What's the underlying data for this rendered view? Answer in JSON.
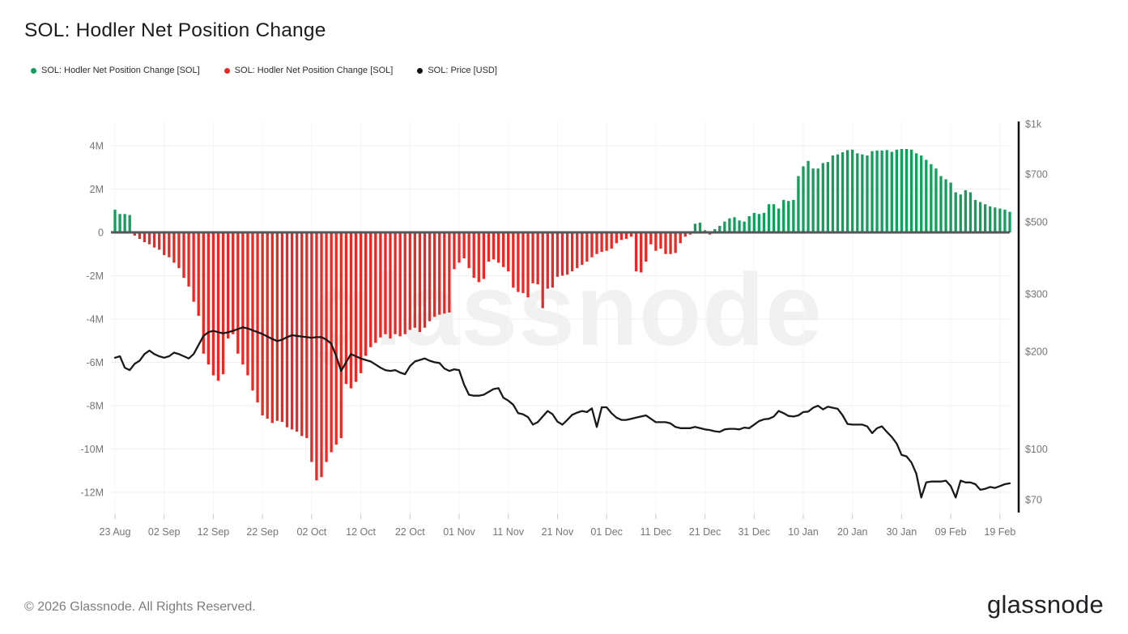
{
  "header": {
    "title": "SOL: Hodler Net Position Change"
  },
  "legend": [
    {
      "label": "SOL: Hodler Net Position Change [SOL]",
      "color": "#10a05c"
    },
    {
      "label": "SOL: Hodler Net Position Change [SOL]",
      "color": "#ed2824"
    },
    {
      "label": "SOL: Price [USD]",
      "color": "#111111"
    }
  ],
  "watermark": "glassnode",
  "footer": {
    "copyright": "© 2026 Glassnode. All Rights Reserved.",
    "logo": "glassnode"
  },
  "chart_data": {
    "type": "bar+line",
    "title": "SOL: Hodler Net Position Change",
    "x_start": "23 Aug",
    "x_end": "21 Feb",
    "x_interval": "daily",
    "x_tick_labels": [
      "23 Aug",
      "02 Sep",
      "12 Sep",
      "22 Sep",
      "02 Oct",
      "12 Oct",
      "22 Oct",
      "01 Nov",
      "11 Nov",
      "21 Nov",
      "01 Dec",
      "11 Dec",
      "21 Dec",
      "31 Dec",
      "10 Jan",
      "20 Jan",
      "30 Jan",
      "09 Feb",
      "19 Feb"
    ],
    "x_tick_day_step": 10,
    "grid": true,
    "legend_position": "top-left",
    "left_axis": {
      "title": "Hodler Net Position Change [SOL]",
      "ticks": [
        "4M",
        "2M",
        "0",
        "-2M",
        "-4M",
        "-6M",
        "-8M",
        "-10M",
        "-12M"
      ],
      "tick_values": [
        4,
        2,
        0,
        -2,
        -4,
        -6,
        -8,
        -10,
        -12
      ],
      "ylim": [
        -13.0,
        5.1
      ],
      "unit": "million SOL"
    },
    "right_axis": {
      "title": "Price [USD]",
      "scale": "log",
      "ticks": [
        "$1k",
        "$700",
        "$500",
        "$300",
        "$200",
        "$100",
        "$70"
      ],
      "tick_values": [
        1000,
        700,
        500,
        300,
        200,
        100,
        70
      ],
      "ylim": [
        66,
        1000
      ]
    },
    "series": [
      {
        "name": "SOL: Hodler Net Position Change [SOL]",
        "type": "bar",
        "unit": "M SOL",
        "positive_color": "#10a05c",
        "negative_color": "#ed2824",
        "values": [
          1.05,
          0.85,
          0.85,
          0.8,
          -0.15,
          -0.3,
          -0.45,
          -0.55,
          -0.7,
          -0.8,
          -1.05,
          -1.15,
          -1.4,
          -1.65,
          -2.1,
          -2.5,
          -3.2,
          -3.85,
          -5.6,
          -6.1,
          -6.6,
          -6.85,
          -6.55,
          -4.9,
          -4.7,
          -5.6,
          -6.1,
          -6.6,
          -7.3,
          -7.85,
          -8.45,
          -8.6,
          -8.8,
          -8.7,
          -8.75,
          -9.0,
          -9.1,
          -9.2,
          -9.4,
          -9.5,
          -10.6,
          -11.45,
          -11.3,
          -10.6,
          -10.15,
          -9.8,
          -9.5,
          -7.0,
          -7.2,
          -6.9,
          -6.5,
          -5.7,
          -5.3,
          -5.1,
          -4.85,
          -4.7,
          -4.9,
          -4.7,
          -4.8,
          -4.7,
          -4.5,
          -4.4,
          -4.6,
          -4.4,
          -4.1,
          -3.9,
          -3.8,
          -3.75,
          -3.7,
          -1.7,
          -1.4,
          -1.2,
          -1.65,
          -2.1,
          -2.3,
          -2.15,
          -1.35,
          -1.25,
          -1.4,
          -1.6,
          -1.8,
          -2.55,
          -2.75,
          -2.8,
          -3.0,
          -2.35,
          -2.4,
          -3.5,
          -2.6,
          -2.55,
          -2.05,
          -2.0,
          -1.95,
          -1.8,
          -1.65,
          -1.5,
          -1.35,
          -1.15,
          -1.0,
          -0.9,
          -0.85,
          -0.75,
          -0.5,
          -0.35,
          -0.3,
          -0.2,
          -1.8,
          -1.85,
          -1.35,
          -0.55,
          -0.85,
          -0.75,
          -1.0,
          -1.0,
          -0.95,
          -0.5,
          -0.2,
          -0.1,
          0.4,
          0.45,
          0.1,
          -0.1,
          0.15,
          0.3,
          0.5,
          0.65,
          0.7,
          0.55,
          0.5,
          0.75,
          0.9,
          0.85,
          0.9,
          1.3,
          1.3,
          1.1,
          1.5,
          1.45,
          1.5,
          2.6,
          3.05,
          3.3,
          2.95,
          2.95,
          3.2,
          3.25,
          3.55,
          3.6,
          3.7,
          3.8,
          3.82,
          3.65,
          3.6,
          3.55,
          3.75,
          3.78,
          3.78,
          3.8,
          3.72,
          3.82,
          3.85,
          3.85,
          3.82,
          3.65,
          3.55,
          3.35,
          3.15,
          2.95,
          2.6,
          2.45,
          2.3,
          1.85,
          1.75,
          1.95,
          1.85,
          1.5,
          1.4,
          1.3,
          1.2,
          1.15,
          1.1,
          1.05,
          0.95
        ]
      },
      {
        "name": "SOL: Price [USD]",
        "type": "line",
        "unit": "USD",
        "color": "#191919",
        "values": [
          191,
          193,
          178,
          175,
          183,
          187,
          196,
          201,
          196,
          193,
          191,
          193,
          198,
          196,
          193,
          190,
          196,
          209,
          223,
          229,
          231,
          229,
          227,
          229,
          231,
          234,
          237,
          235,
          232,
          229,
          226,
          222,
          218,
          215,
          217,
          221,
          224,
          223,
          222,
          221,
          220,
          221,
          221,
          217,
          211,
          193,
          174,
          185,
          196,
          193,
          190,
          188,
          186,
          182,
          178,
          175,
          174,
          175,
          172,
          170,
          180,
          186,
          188,
          190,
          187,
          185,
          184,
          177,
          174,
          176,
          175,
          158,
          147,
          146,
          146,
          147,
          150,
          153,
          154,
          144,
          141,
          137,
          129,
          128,
          125.5,
          119,
          121,
          126,
          131,
          128,
          121.5,
          119,
          123,
          127.5,
          129.5,
          131,
          130,
          133.5,
          117,
          134.5,
          134.5,
          129,
          125,
          123,
          123,
          124,
          125,
          126,
          127,
          124,
          121,
          121,
          121,
          120,
          117,
          116,
          116,
          116,
          117,
          116,
          115,
          114.5,
          113.5,
          113,
          115,
          115.5,
          115.5,
          115,
          116.5,
          116,
          119,
          122,
          123.5,
          124,
          126,
          131,
          129,
          126.5,
          126,
          127,
          130,
          130.5,
          134,
          136,
          132.5,
          135,
          134,
          133,
          127,
          119.5,
          119,
          119,
          119,
          117.5,
          112,
          116,
          117.5,
          113,
          109,
          104,
          96,
          95,
          91,
          84,
          71,
          79,
          79.5,
          79.5,
          79.5,
          80,
          77,
          71,
          80,
          79,
          79,
          78,
          75,
          75.5,
          76.5,
          76,
          77,
          78,
          78.5
        ]
      }
    ]
  }
}
